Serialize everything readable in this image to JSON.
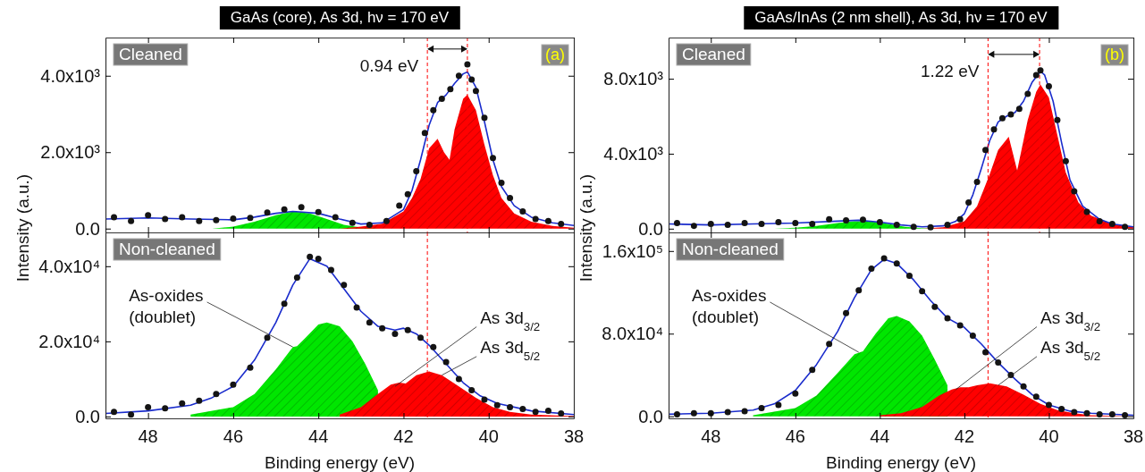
{
  "chart_data": [
    {
      "type": "line",
      "title": "GaAs (core), As 3d, hν = 170 eV",
      "xlim": [
        49,
        38
      ],
      "xticks": [
        48,
        46,
        44,
        42,
        40,
        38
      ],
      "ylim": [
        -100,
        5000
      ],
      "yticks": [
        {
          "value": 0,
          "label": "0.0"
        },
        {
          "value": 2000,
          "label": "2.0x10³"
        },
        {
          "value": 4000,
          "label": "4.0x10³"
        }
      ],
      "tick_labels": "y",
      "series": [
        {
          "type": "area",
          "color": "#00e600",
          "x": [
            46.5,
            46,
            45.5,
            45,
            44.6,
            44.2,
            43.8,
            43.4,
            43,
            42.5
          ],
          "values": [
            0,
            50,
            180,
            350,
            450,
            400,
            250,
            100,
            30,
            0
          ]
        },
        {
          "type": "area",
          "color": "#ff0000",
          "x": [
            43.5,
            43,
            42.5,
            42,
            41.8,
            41.6,
            41.4,
            41.2,
            41.05,
            40.92,
            40.8,
            40.6,
            40.5,
            40.3,
            40.1,
            39.9,
            39.7,
            39.4,
            39,
            38.5,
            38
          ],
          "values": [
            0,
            50,
            130,
            450,
            800,
            1300,
            2100,
            2350,
            2000,
            1800,
            2600,
            3400,
            3500,
            3100,
            2200,
            1400,
            800,
            400,
            180,
            70,
            20
          ]
        },
        {
          "type": "scatter",
          "marker": "circle",
          "color": "#141414",
          "x": [
            48.8,
            48.4,
            48,
            47.6,
            47.2,
            46.8,
            46.4,
            46,
            45.6,
            45.2,
            44.8,
            44.4,
            44,
            43.6,
            43.2,
            42.8,
            42.4,
            42.1,
            41.9,
            41.7,
            41.5,
            41.3,
            41.1,
            40.9,
            40.7,
            40.5,
            40.4,
            40.3,
            40.1,
            39.9,
            39.7,
            39.5,
            39.2,
            38.9,
            38.6,
            38.3
          ],
          "values": [
            300,
            200,
            350,
            250,
            300,
            200,
            220,
            260,
            280,
            420,
            500,
            560,
            430,
            300,
            150,
            100,
            200,
            600,
            900,
            1500,
            2500,
            3100,
            3400,
            3650,
            4000,
            4300,
            3900,
            3600,
            2900,
            1850,
            1200,
            800,
            450,
            250,
            200,
            120
          ]
        },
        {
          "color": "#1a2ccc",
          "x": [
            49,
            48,
            47,
            46,
            45.5,
            45,
            44.6,
            44,
            43.5,
            43,
            42.5,
            42,
            41.8,
            41.6,
            41.4,
            41.2,
            41,
            40.8,
            40.6,
            40.5,
            40.3,
            40.1,
            39.9,
            39.7,
            39.4,
            39,
            38.5,
            38
          ],
          "values": [
            250,
            280,
            250,
            230,
            300,
            400,
            450,
            400,
            250,
            120,
            150,
            500,
            1000,
            1800,
            2700,
            3300,
            3500,
            3800,
            4050,
            4100,
            3700,
            2800,
            1800,
            1100,
            600,
            300,
            150,
            80
          ]
        }
      ],
      "ref_lines": [
        {
          "axis": "x",
          "value": 41.44,
          "color": "#ff0000",
          "line_style": "dashed"
        },
        {
          "axis": "x",
          "value": 40.5,
          "color": "#ff0000",
          "line_style": "dashed"
        }
      ],
      "annotations": [
        "Cleaned",
        "(a)",
        {
          "text": "0.94 eV",
          "x": 41.44,
          "y": 4700
        }
      ]
    },
    {
      "type": "line",
      "title": "GaAs/InAs (2 nm shell), As 3d, hν = 170 eV",
      "xlim": [
        49,
        38
      ],
      "xticks": [
        48,
        46,
        44,
        42,
        40,
        38
      ],
      "ylim": [
        -200,
        10200
      ],
      "yticks": [
        {
          "value": 0,
          "label": "0.0"
        },
        {
          "value": 4000,
          "label": "4.0x10³"
        },
        {
          "value": 8000,
          "label": "8.0x10³"
        }
      ],
      "tick_labels": "y",
      "series": [
        {
          "type": "area",
          "color": "#00e600",
          "x": [
            46.5,
            46,
            45.5,
            45,
            44.6,
            44.2,
            43.8,
            43.4,
            43,
            42.5
          ],
          "values": [
            0,
            50,
            150,
            300,
            400,
            380,
            250,
            100,
            30,
            0
          ]
        },
        {
          "type": "area",
          "color": "#ff0000",
          "x": [
            43,
            42.5,
            42,
            41.7,
            41.4,
            41.2,
            40.95,
            40.75,
            40.5,
            40.3,
            40.2,
            40,
            39.8,
            39.6,
            39.3,
            39,
            38.5,
            38
          ],
          "values": [
            0,
            80,
            400,
            1200,
            2900,
            4200,
            4900,
            3100,
            5800,
            7300,
            7700,
            7000,
            5000,
            3000,
            1400,
            700,
            250,
            80
          ]
        },
        {
          "type": "scatter",
          "marker": "circle",
          "color": "#141414",
          "x": [
            48.8,
            48.4,
            48,
            47.6,
            47.2,
            46.8,
            46.4,
            46,
            45.6,
            45.2,
            44.8,
            44.4,
            44,
            43.6,
            43.2,
            42.8,
            42.4,
            42.1,
            41.9,
            41.7,
            41.5,
            41.3,
            41.1,
            40.9,
            40.7,
            40.5,
            40.3,
            40.2,
            40,
            39.8,
            39.6,
            39.4,
            39.1,
            38.8,
            38.5,
            38.2
          ],
          "values": [
            300,
            150,
            250,
            200,
            300,
            250,
            350,
            300,
            250,
            500,
            450,
            480,
            350,
            200,
            100,
            80,
            200,
            500,
            1400,
            2500,
            4200,
            5300,
            5900,
            6100,
            6400,
            7200,
            8200,
            8450,
            7600,
            5800,
            3600,
            2000,
            900,
            400,
            250,
            100
          ]
        },
        {
          "color": "#1a2ccc",
          "x": [
            49,
            48,
            47,
            46,
            45,
            44.5,
            44,
            43.5,
            43,
            42.5,
            42.2,
            42,
            41.8,
            41.6,
            41.4,
            41.2,
            41,
            40.8,
            40.6,
            40.4,
            40.2,
            40.1,
            39.9,
            39.7,
            39.5,
            39.2,
            38.8,
            38.5,
            38
          ],
          "values": [
            250,
            200,
            250,
            300,
            400,
            450,
            350,
            200,
            100,
            150,
            400,
            800,
            1800,
            3200,
            4700,
            5700,
            6000,
            6200,
            6800,
            7800,
            8400,
            8200,
            6800,
            4600,
            2600,
            1200,
            500,
            250,
            100
          ]
        }
      ],
      "ref_lines": [
        {
          "axis": "x",
          "value": 41.44,
          "color": "#ff0000",
          "line_style": "dashed"
        },
        {
          "axis": "x",
          "value": 40.22,
          "color": "#ff0000",
          "line_style": "dashed"
        }
      ],
      "annotations": [
        "Cleaned",
        "(b)",
        {
          "text": "1.22 eV",
          "x": 41.44,
          "y": 9300
        }
      ]
    },
    {
      "type": "line",
      "xlabel": "Binding energy (eV)",
      "ylabel": "Intensity (a.u.)",
      "xlim": [
        49,
        38
      ],
      "xticks": [
        48,
        46,
        44,
        42,
        40,
        38
      ],
      "ylim": [
        -500,
        49000
      ],
      "yticks": [
        {
          "value": 0,
          "label": "0.0"
        },
        {
          "value": 20000,
          "label": "2.0x10⁴"
        },
        {
          "value": 40000,
          "label": "4.0x10⁴"
        }
      ],
      "series": [
        {
          "type": "area",
          "color": "#00e600",
          "x": [
            47,
            46,
            45.5,
            45,
            44.6,
            44.5,
            44.3,
            44,
            43.8,
            43.5,
            43.2,
            42.9,
            42.6
          ],
          "values": [
            500,
            2500,
            6000,
            12500,
            18500,
            18700,
            21000,
            24500,
            25000,
            24000,
            20000,
            14000,
            7000
          ]
        },
        {
          "type": "area",
          "color": "#ff0000",
          "x": [
            43.5,
            43,
            42.6,
            42.3,
            42.1,
            41.95,
            41.7,
            41.4,
            41.1,
            40.7,
            40.3,
            39.9,
            39.5,
            39,
            38
          ],
          "values": [
            500,
            2500,
            6000,
            8500,
            9000,
            8800,
            11000,
            12000,
            11000,
            8000,
            5000,
            2500,
            1200,
            500,
            100
          ]
        },
        {
          "type": "scatter",
          "marker": "circle",
          "color": "#141414",
          "x": [
            48.8,
            48.4,
            48,
            47.6,
            47.2,
            46.8,
            46.4,
            46,
            45.6,
            45.2,
            44.8,
            44.5,
            44.2,
            44,
            43.7,
            43.4,
            43.1,
            42.8,
            42.5,
            42.2,
            41.9,
            41.6,
            41.3,
            41,
            40.7,
            40.4,
            40.1,
            39.8,
            39.5,
            39.2,
            38.9,
            38.6,
            38.3
          ],
          "values": [
            1200,
            500,
            2500,
            2200,
            3500,
            4200,
            6000,
            8500,
            13000,
            21000,
            30000,
            37000,
            42500,
            42000,
            39000,
            35000,
            29000,
            25000,
            23500,
            22000,
            23000,
            21000,
            18500,
            14500,
            10000,
            7000,
            4500,
            3000,
            2500,
            2000,
            1200,
            1500,
            800
          ]
        },
        {
          "color": "#1a2ccc",
          "x": [
            49,
            48,
            47,
            46.5,
            46,
            45.5,
            45,
            44.6,
            44.2,
            43.8,
            43.4,
            43,
            42.6,
            42.2,
            42,
            41.7,
            41.4,
            41,
            40.6,
            40.2,
            39.8,
            39,
            38
          ],
          "values": [
            800,
            1500,
            3000,
            5000,
            8000,
            15000,
            25000,
            35000,
            42000,
            40000,
            34000,
            28000,
            24000,
            23000,
            23500,
            22000,
            19000,
            14000,
            9000,
            5500,
            3500,
            1500,
            500
          ]
        }
      ],
      "ref_lines": [
        {
          "axis": "x",
          "value": 41.44,
          "color": "#ff0000",
          "line_style": "dashed"
        }
      ],
      "annotations": [
        "Non-cleaned",
        {
          "text": "As-oxides\n(doublet)",
          "x": 44.6,
          "y": 18500
        },
        {
          "text": "As 3d$_{3/2}$",
          "x": 42.2,
          "y": 8000
        },
        {
          "text": "As 3d$_{5/2}$",
          "x": 41.1,
          "y": 11000
        }
      ]
    },
    {
      "type": "line",
      "xlabel": "Binding energy (eV)",
      "ylabel": "Intensity (a.u.)",
      "xlim": [
        49,
        38
      ],
      "xticks": [
        48,
        46,
        44,
        42,
        40,
        38
      ],
      "ylim": [
        -2000,
        178000
      ],
      "yticks": [
        {
          "value": 0,
          "label": "0.0"
        },
        {
          "value": 80000,
          "label": "8.0x10⁴"
        },
        {
          "value": 160000,
          "label": "1.6x10⁵"
        }
      ],
      "series": [
        {
          "type": "area",
          "color": "#00e600",
          "x": [
            47,
            46,
            45.5,
            45,
            44.6,
            44.4,
            44.1,
            43.8,
            43.6,
            43.3,
            43,
            42.7,
            42.4
          ],
          "values": [
            1000,
            8000,
            20000,
            42000,
            60000,
            63000,
            80000,
            95000,
            97000,
            92000,
            78000,
            55000,
            30000
          ]
        },
        {
          "type": "area",
          "color": "#ff0000",
          "x": [
            44,
            43.5,
            43,
            42.6,
            42.3,
            42.1,
            41.9,
            41.7,
            41.4,
            41,
            40.6,
            40.2,
            39.8,
            39.4,
            39,
            38
          ],
          "values": [
            1000,
            3000,
            9000,
            20000,
            26000,
            28000,
            28000,
            30000,
            32000,
            29000,
            21000,
            12000,
            6000,
            3000,
            1000,
            0
          ]
        },
        {
          "type": "scatter",
          "marker": "circle",
          "color": "#141414",
          "x": [
            48.8,
            48.4,
            48,
            47.6,
            47.2,
            46.8,
            46.4,
            46,
            45.6,
            45.2,
            44.8,
            44.5,
            44.2,
            43.9,
            43.6,
            43.3,
            43,
            42.7,
            42.4,
            42.1,
            41.8,
            41.5,
            41.2,
            40.9,
            40.6,
            40.3,
            40,
            39.7,
            39.4,
            39.1,
            38.8,
            38.5,
            38.2
          ],
          "values": [
            2000,
            3000,
            3000,
            4000,
            5000,
            8000,
            11000,
            22000,
            45000,
            70000,
            100000,
            122000,
            143000,
            153000,
            148000,
            136000,
            121000,
            106000,
            95000,
            88000,
            78000,
            62000,
            52000,
            40000,
            29000,
            19000,
            11000,
            7000,
            4000,
            3000,
            2000,
            2000,
            1000
          ]
        },
        {
          "color": "#1a2ccc",
          "x": [
            49,
            48,
            47,
            46.5,
            46,
            45.5,
            45,
            44.6,
            44.2,
            43.9,
            43.6,
            43.2,
            42.8,
            42.4,
            42,
            41.6,
            41.2,
            40.8,
            40.4,
            40,
            39.5,
            39,
            38
          ],
          "values": [
            2000,
            3000,
            6000,
            12000,
            25000,
            50000,
            82000,
            115000,
            142000,
            152000,
            148000,
            132000,
            112000,
            95000,
            86000,
            70000,
            52000,
            36000,
            21000,
            11000,
            5000,
            3000,
            1000
          ]
        }
      ],
      "ref_lines": [
        {
          "axis": "x",
          "value": 41.44,
          "color": "#ff0000",
          "line_style": "dashed"
        }
      ],
      "annotations": [
        "Non-cleaned",
        {
          "text": "As-oxides\n(doublet)",
          "x": 44.5,
          "y": 62000
        },
        {
          "text": "As 3d$_{3/2}$",
          "x": 42.2,
          "y": 26000
        },
        {
          "text": "As 3d$_{5/2}$",
          "x": 41.2,
          "y": 30000
        }
      ]
    }
  ]
}
